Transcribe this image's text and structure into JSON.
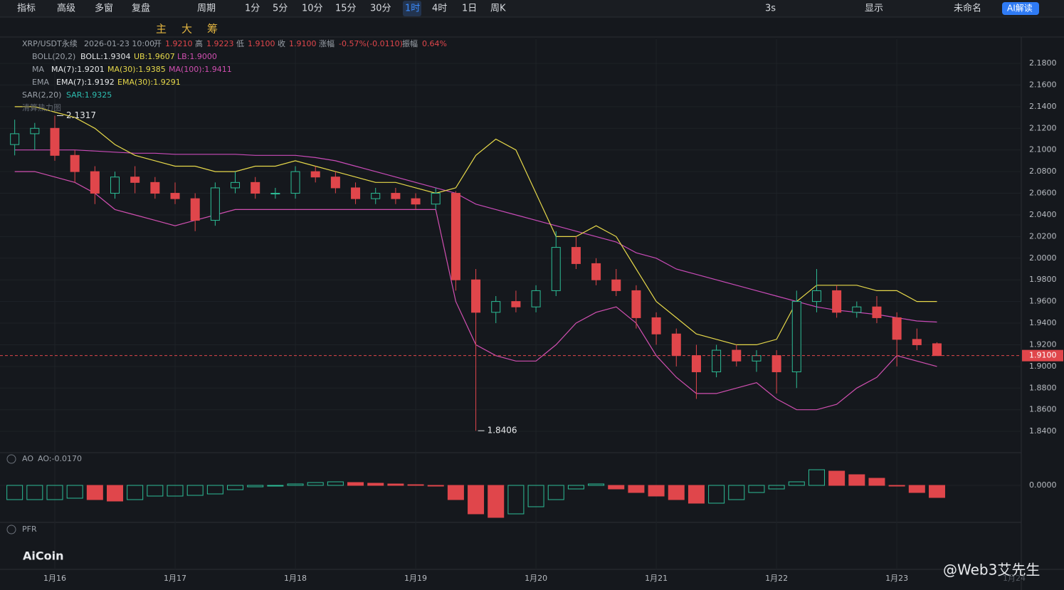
{
  "toolbar": {
    "left": [
      "指标",
      "高级",
      "多窗",
      "复盘",
      "周期",
      "1分",
      "5分",
      "10分",
      "15分",
      "30分",
      "1时",
      "4时",
      "1日",
      "周K"
    ],
    "right": [
      "3s",
      "显示",
      "未命名",
      "AI解读"
    ]
  },
  "drawing_toolbar": [
    "主",
    "大",
    "筹"
  ],
  "legend": {
    "row1": [
      "XRP/USDT永续",
      "2026-01-23 10:00",
      "开",
      "1.9210",
      "高",
      "1.9223",
      "低",
      "1.9100",
      "收",
      "1.9100",
      "涨幅",
      "-0.57%(-0.0110)",
      "振幅",
      "0.64%"
    ],
    "row2": [
      "BOLL(20,2)",
      "BOLL:1.9304",
      "UB:1.9607",
      "LB:1.9000"
    ],
    "row3": [
      "MA",
      "MA(7):1.9201",
      "MA(30):1.9385",
      "MA(100):1.9411"
    ],
    "row4": [
      "EMA",
      "EMA(7):1.9192",
      "EMA(30):1.9291"
    ],
    "row5": [
      "SAR(2,20)",
      "SAR:1.9325"
    ],
    "row6": [
      "清算热力图"
    ]
  },
  "ao_panel": {
    "title": "AO",
    "value_text": "AO:-0.0170"
  },
  "pfr_panel": {
    "title": "PFR"
  },
  "watermark": "AiCoin",
  "author": "@Web3艾先生",
  "future_date": "1月24",
  "chart_data": {
    "type": "candlestick",
    "grid": true,
    "up_color": "#2dbd96",
    "down_color": "#e0464b",
    "categories": [
      null,
      null,
      "1月16",
      null,
      null,
      null,
      null,
      null,
      "1月17",
      null,
      null,
      null,
      null,
      null,
      "1月18",
      null,
      null,
      null,
      null,
      null,
      "1月19",
      null,
      null,
      null,
      null,
      null,
      "1月20",
      null,
      null,
      null,
      null,
      null,
      "1月21",
      null,
      null,
      null,
      null,
      null,
      "1月22",
      null,
      null,
      null,
      null,
      null,
      "1月23",
      null,
      null
    ],
    "open": [
      2.105,
      2.115,
      2.12,
      2.095,
      2.08,
      2.06,
      2.075,
      2.07,
      2.06,
      2.055,
      2.035,
      2.065,
      2.07,
      2.06,
      2.06,
      2.08,
      2.075,
      2.065,
      2.055,
      2.06,
      2.055,
      2.05,
      2.06,
      1.98,
      1.95,
      1.96,
      1.955,
      1.97,
      2.01,
      1.995,
      1.98,
      1.97,
      1.945,
      1.93,
      1.91,
      1.895,
      1.915,
      1.905,
      1.91,
      1.895,
      1.96,
      1.97,
      1.95,
      1.955,
      1.945,
      1.925,
      1.921
    ],
    "high": [
      2.128,
      2.125,
      2.1317,
      2.1,
      2.085,
      2.08,
      2.085,
      2.075,
      2.07,
      2.06,
      2.07,
      2.08,
      2.075,
      2.065,
      2.085,
      2.085,
      2.08,
      2.07,
      2.065,
      2.065,
      2.06,
      2.065,
      2.062,
      1.99,
      1.965,
      1.97,
      1.975,
      2.025,
      2.02,
      2.0,
      1.99,
      1.975,
      1.95,
      1.935,
      1.92,
      1.92,
      1.92,
      1.915,
      1.915,
      1.97,
      1.99,
      1.975,
      1.96,
      1.965,
      1.95,
      1.935,
      1.9223
    ],
    "low": [
      2.095,
      2.1,
      2.09,
      2.07,
      2.05,
      2.055,
      2.06,
      2.055,
      2.05,
      2.025,
      2.03,
      2.06,
      2.055,
      2.055,
      2.055,
      2.07,
      2.06,
      2.05,
      2.05,
      2.05,
      2.045,
      2.045,
      1.97,
      1.8406,
      1.94,
      1.95,
      1.95,
      1.965,
      1.99,
      1.975,
      1.965,
      1.935,
      1.92,
      1.9,
      1.87,
      1.89,
      1.9,
      1.895,
      1.875,
      1.88,
      1.95,
      1.945,
      1.945,
      1.94,
      1.9,
      1.915,
      1.91
    ],
    "close": [
      2.115,
      2.12,
      2.095,
      2.08,
      2.06,
      2.075,
      2.07,
      2.06,
      2.055,
      2.035,
      2.065,
      2.07,
      2.06,
      2.06,
      2.08,
      2.075,
      2.065,
      2.055,
      2.06,
      2.055,
      2.05,
      2.06,
      1.98,
      1.95,
      1.96,
      1.955,
      1.97,
      2.01,
      1.995,
      1.98,
      1.97,
      1.945,
      1.93,
      1.91,
      1.895,
      1.915,
      1.905,
      1.91,
      1.895,
      1.96,
      1.97,
      1.95,
      1.955,
      1.945,
      1.925,
      1.92,
      1.91
    ],
    "boll_upper": {
      "color": "#e6d84a",
      "values": [
        2.14,
        2.14,
        2.135,
        2.13,
        2.12,
        2.105,
        2.095,
        2.09,
        2.085,
        2.085,
        2.08,
        2.08,
        2.085,
        2.085,
        2.09,
        2.085,
        2.08,
        2.075,
        2.07,
        2.07,
        2.065,
        2.06,
        2.065,
        2.095,
        2.11,
        2.1,
        2.06,
        2.02,
        2.02,
        2.03,
        2.02,
        1.99,
        1.96,
        1.945,
        1.93,
        1.925,
        1.92,
        1.92,
        1.925,
        1.96,
        1.975,
        1.975,
        1.975,
        1.97,
        1.97,
        1.96,
        1.96
      ]
    },
    "boll_lower": {
      "color": "#d04fb0",
      "values": [
        2.08,
        2.08,
        2.075,
        2.07,
        2.06,
        2.045,
        2.04,
        2.035,
        2.03,
        2.035,
        2.04,
        2.045,
        2.045,
        2.045,
        2.045,
        2.045,
        2.045,
        2.045,
        2.045,
        2.045,
        2.045,
        2.045,
        1.96,
        1.92,
        1.91,
        1.905,
        1.905,
        1.92,
        1.94,
        1.95,
        1.955,
        1.94,
        1.91,
        1.89,
        1.875,
        1.875,
        1.88,
        1.885,
        1.87,
        1.86,
        1.86,
        1.865,
        1.88,
        1.89,
        1.91,
        1.905,
        1.9
      ]
    },
    "ma100": {
      "color": "#c94bb8",
      "values": [
        2.1,
        2.1,
        2.1,
        2.1,
        2.099,
        2.098,
        2.097,
        2.097,
        2.096,
        2.096,
        2.096,
        2.096,
        2.095,
        2.095,
        2.095,
        2.093,
        2.09,
        2.085,
        2.08,
        2.075,
        2.07,
        2.065,
        2.06,
        2.05,
        2.045,
        2.04,
        2.035,
        2.03,
        2.025,
        2.02,
        2.015,
        2.005,
        2.0,
        1.99,
        1.985,
        1.98,
        1.975,
        1.97,
        1.965,
        1.96,
        1.955,
        1.952,
        1.95,
        1.948,
        1.945,
        1.942,
        1.941
      ]
    },
    "ylim": [
      1.821,
      2.2024
    ],
    "yticks": [
      {
        "value": 2.18,
        "label": "2.1800"
      },
      {
        "value": 2.16,
        "label": "2.1600"
      },
      {
        "value": 2.14,
        "label": "2.1400"
      },
      {
        "value": 2.12,
        "label": "2.1200"
      },
      {
        "value": 2.1,
        "label": "2.1000"
      },
      {
        "value": 2.08,
        "label": "2.0800"
      },
      {
        "value": 2.06,
        "label": "2.0600"
      },
      {
        "value": 2.04,
        "label": "2.0400"
      },
      {
        "value": 2.02,
        "label": "2.0200"
      },
      {
        "value": 2.0,
        "label": "2.0000"
      },
      {
        "value": 1.98,
        "label": "1.9800"
      },
      {
        "value": 1.96,
        "label": "1.9600"
      },
      {
        "value": 1.94,
        "label": "1.9400"
      },
      {
        "value": 1.92,
        "label": "1.9200"
      },
      {
        "value": 1.9,
        "label": "1.9000"
      },
      {
        "value": 1.88,
        "label": "1.8800"
      },
      {
        "value": 1.86,
        "label": "1.8600"
      },
      {
        "value": 1.84,
        "label": "1.8400"
      }
    ],
    "price_line": {
      "value": 1.91,
      "label": "1.9100",
      "color": "#e0464b"
    },
    "annotations": [
      {
        "value": 2.1317,
        "label": "2.1317"
      },
      {
        "value": 1.8406,
        "label": "1.8406"
      }
    ],
    "ao": {
      "values": [
        -0.02,
        -0.02,
        -0.02,
        -0.018,
        -0.02,
        -0.022,
        -0.02,
        -0.015,
        -0.015,
        -0.014,
        -0.012,
        -0.006,
        -0.002,
        0.0,
        0.002,
        0.004,
        0.005,
        0.004,
        0.003,
        0.002,
        0.001,
        0.0,
        -0.02,
        -0.04,
        -0.045,
        -0.04,
        -0.03,
        -0.02,
        -0.005,
        0.002,
        -0.005,
        -0.01,
        -0.015,
        -0.02,
        -0.025,
        -0.025,
        -0.02,
        -0.01,
        -0.005,
        0.005,
        0.022,
        0.02,
        0.015,
        0.01,
        0.0,
        -0.01,
        -0.017
      ],
      "ylim": [
        -0.06,
        0.03
      ],
      "yticks": [
        {
          "value": 0,
          "label": "0.0000"
        }
      ]
    }
  }
}
